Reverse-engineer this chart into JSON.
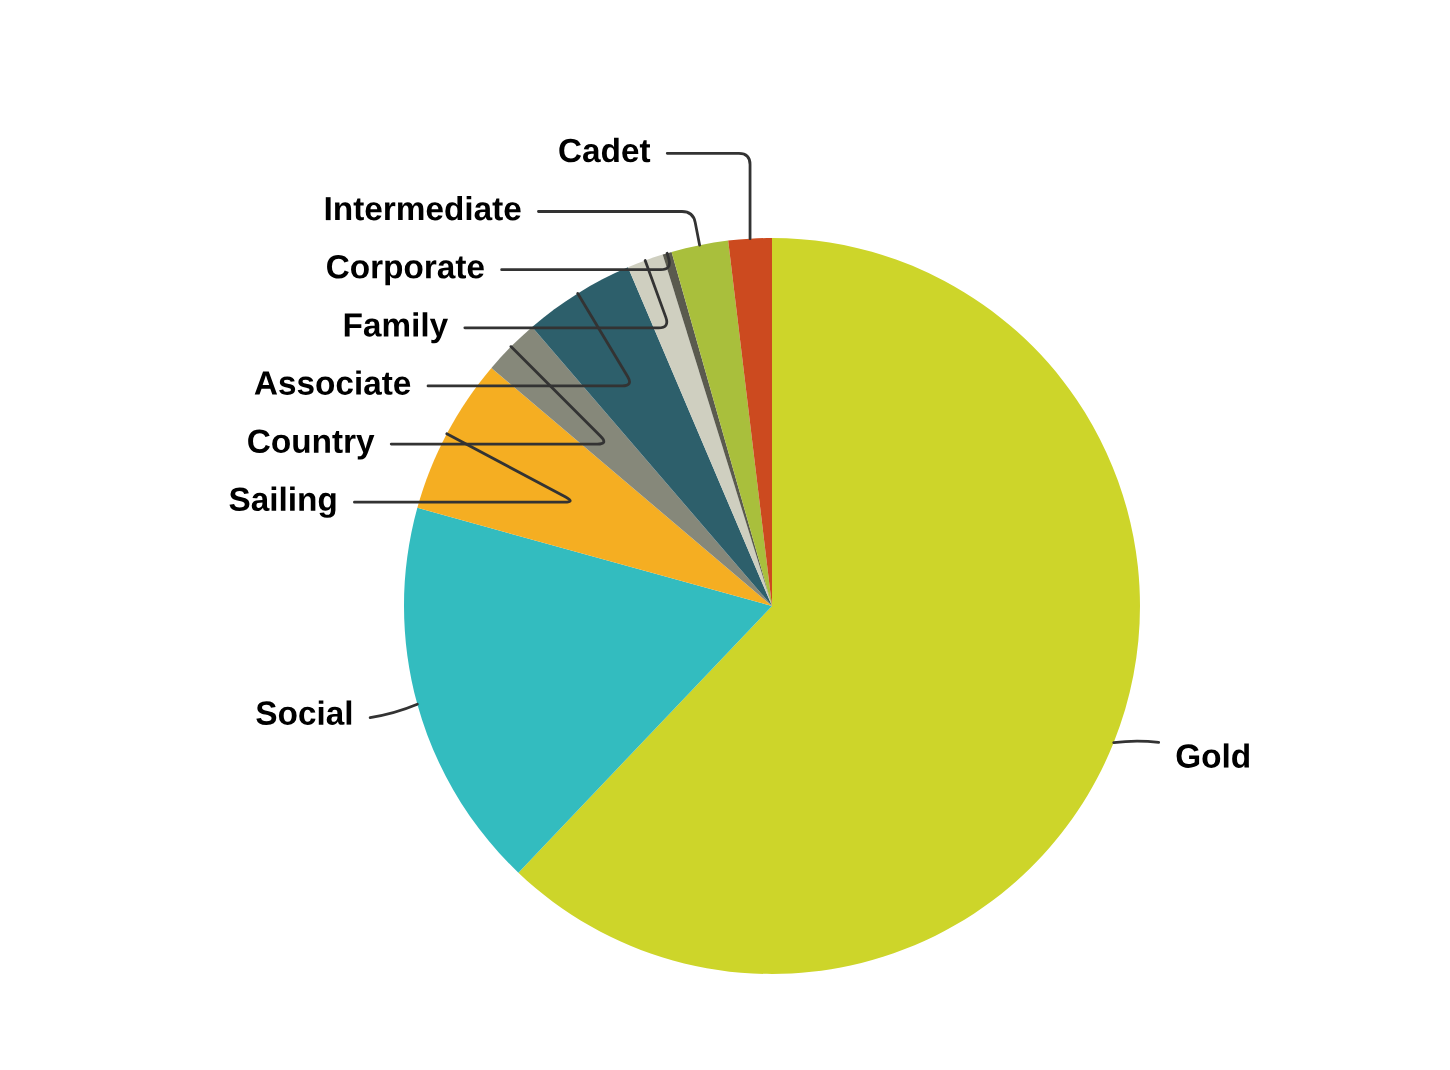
{
  "chart_data": {
    "type": "pie",
    "categories": [
      "Gold",
      "Social",
      "Sailing",
      "Country",
      "Associate",
      "Family",
      "Corporate",
      "Intermediate",
      "Cadet"
    ],
    "values": [
      62.1,
      17.2,
      6.9,
      2.5,
      4.9,
      1.6,
      0.4,
      2.5,
      1.9
    ],
    "colors": [
      "#cdd52a",
      "#33bcbf",
      "#f5ae22",
      "#86887a",
      "#2d5f6b",
      "#cfcfc0",
      "#5a5a4e",
      "#a9bf3c",
      "#cc4a1f"
    ],
    "legend": false
  }
}
